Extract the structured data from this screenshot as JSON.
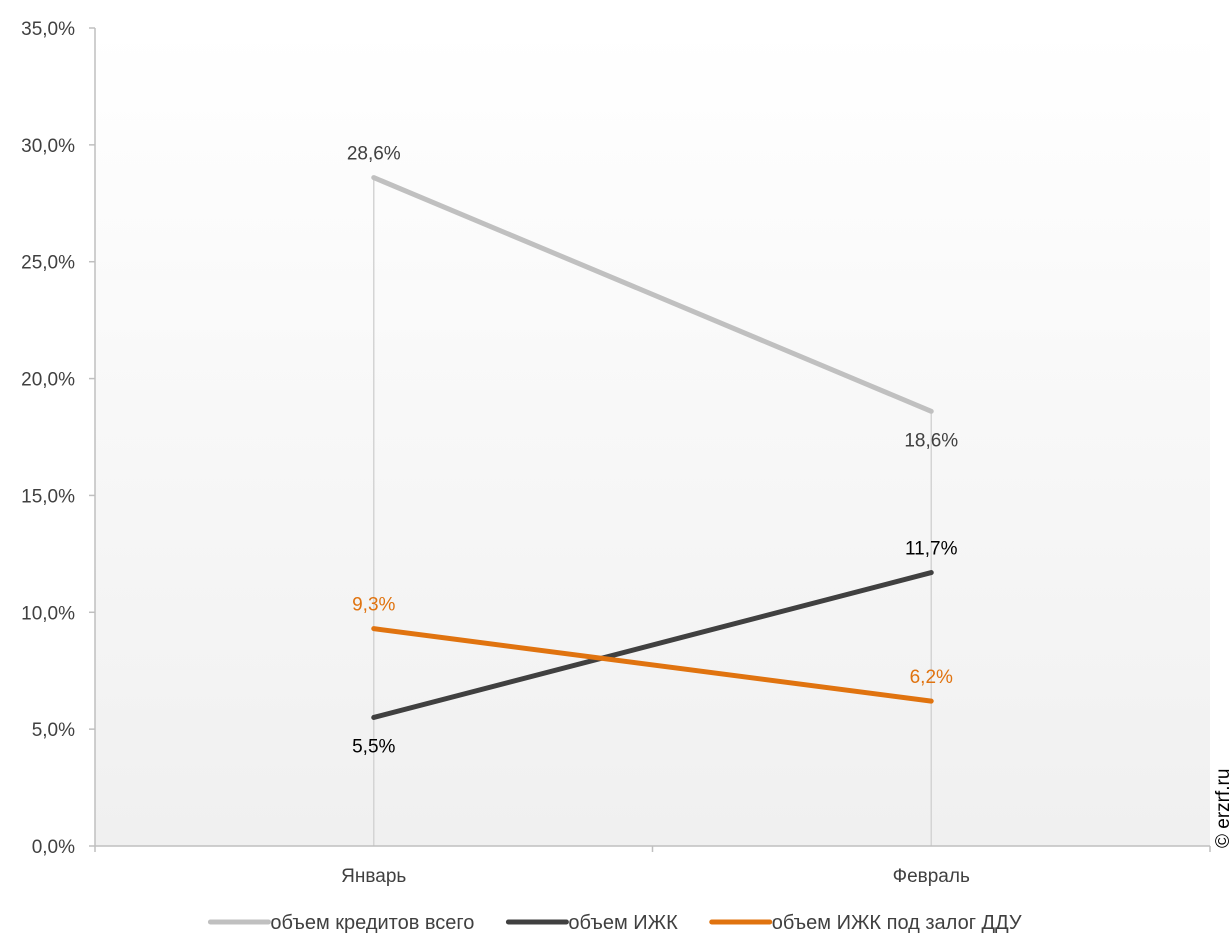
{
  "chart_data": {
    "type": "line",
    "categories": [
      "Январь",
      "Февраль"
    ],
    "ylim": [
      0,
      35
    ],
    "y_ticks": [
      "0,0%",
      "5,0%",
      "10,0%",
      "15,0%",
      "20,0%",
      "25,0%",
      "30,0%",
      "35,0%"
    ],
    "y_tick_values": [
      0,
      5,
      10,
      15,
      20,
      25,
      30,
      35
    ],
    "grid": false,
    "drop_lines": true,
    "legend_position": "bottom",
    "series": [
      {
        "name": "объем кредитов всего",
        "values": [
          28.6,
          18.6
        ],
        "labels": [
          "28,6%",
          "18,6%"
        ],
        "color": "#c0c0c0",
        "label_color": "#404040",
        "label_pos": [
          "above",
          "below"
        ]
      },
      {
        "name": "объем ИЖК",
        "values": [
          5.5,
          11.7
        ],
        "labels": [
          "5,5%",
          "11,7%"
        ],
        "color": "#404040",
        "label_color": "#000000",
        "label_pos": [
          "below",
          "above"
        ]
      },
      {
        "name": "объем ИЖК под залог ДДУ",
        "values": [
          9.3,
          6.2
        ],
        "labels": [
          "9,3%",
          "6,2%"
        ],
        "color": "#e0730f",
        "label_color": "#e0730f",
        "label_pos": [
          "above",
          "above"
        ]
      }
    ]
  },
  "watermark": "© erzrf.ru"
}
